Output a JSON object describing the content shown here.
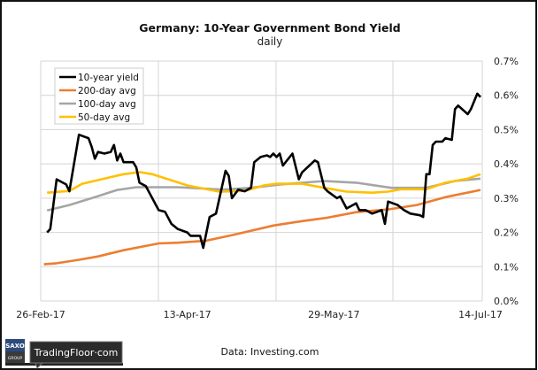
{
  "chart_data": {
    "type": "line",
    "title": "Germany: 10-Year Government Bond Yield",
    "subtitle": "daily",
    "xlabel": "",
    "ylabel": "",
    "x_ticks": [
      "26-Feb-17",
      "13-Apr-17",
      "29-May-17",
      "14-Jul-17"
    ],
    "y_ticks": [
      "0.0%",
      "0.1%",
      "0.2%",
      "0.3%",
      "0.4%",
      "0.5%",
      "0.6%",
      "0.7%"
    ],
    "ylim": [
      0,
      0.7
    ],
    "xlim": [
      "2017-02-26",
      "2017-07-14"
    ],
    "y_axis_side": "right",
    "grid": true,
    "legend_position": "top-left",
    "series": [
      {
        "name": "10-year yield",
        "color": "#000000",
        "points": [
          [
            "2017-02-28",
            0.2
          ],
          [
            "2017-03-01",
            0.21
          ],
          [
            "2017-03-03",
            0.355
          ],
          [
            "2017-03-06",
            0.34
          ],
          [
            "2017-03-07",
            0.32
          ],
          [
            "2017-03-10",
            0.485
          ],
          [
            "2017-03-13",
            0.475
          ],
          [
            "2017-03-14",
            0.45
          ],
          [
            "2017-03-15",
            0.415
          ],
          [
            "2017-03-16",
            0.435
          ],
          [
            "2017-03-18",
            0.43
          ],
          [
            "2017-03-20",
            0.435
          ],
          [
            "2017-03-21",
            0.455
          ],
          [
            "2017-03-22",
            0.41
          ],
          [
            "2017-03-23",
            0.43
          ],
          [
            "2017-03-24",
            0.405
          ],
          [
            "2017-03-27",
            0.405
          ],
          [
            "2017-03-28",
            0.39
          ],
          [
            "2017-03-29",
            0.345
          ],
          [
            "2017-03-31",
            0.335
          ],
          [
            "2017-04-04",
            0.265
          ],
          [
            "2017-04-06",
            0.26
          ],
          [
            "2017-04-08",
            0.225
          ],
          [
            "2017-04-10",
            0.21
          ],
          [
            "2017-04-13",
            0.2
          ],
          [
            "2017-04-14",
            0.19
          ],
          [
            "2017-04-17",
            0.19
          ],
          [
            "2017-04-18",
            0.155
          ],
          [
            "2017-04-20",
            0.245
          ],
          [
            "2017-04-22",
            0.255
          ],
          [
            "2017-04-25",
            0.38
          ],
          [
            "2017-04-26",
            0.365
          ],
          [
            "2017-04-27",
            0.3
          ],
          [
            "2017-04-29",
            0.325
          ],
          [
            "2017-05-01",
            0.32
          ],
          [
            "2017-05-03",
            0.33
          ],
          [
            "2017-05-04",
            0.405
          ],
          [
            "2017-05-06",
            0.42
          ],
          [
            "2017-05-08",
            0.425
          ],
          [
            "2017-05-09",
            0.42
          ],
          [
            "2017-05-10",
            0.43
          ],
          [
            "2017-05-11",
            0.42
          ],
          [
            "2017-05-12",
            0.43
          ],
          [
            "2017-05-13",
            0.395
          ],
          [
            "2017-05-16",
            0.43
          ],
          [
            "2017-05-18",
            0.355
          ],
          [
            "2017-05-19",
            0.375
          ],
          [
            "2017-05-23",
            0.41
          ],
          [
            "2017-05-24",
            0.405
          ],
          [
            "2017-05-26",
            0.33
          ],
          [
            "2017-05-27",
            0.32
          ],
          [
            "2017-05-30",
            0.3
          ],
          [
            "2017-05-31",
            0.305
          ],
          [
            "2017-06-02",
            0.27
          ],
          [
            "2017-06-04",
            0.28
          ],
          [
            "2017-06-05",
            0.285
          ],
          [
            "2017-06-06",
            0.265
          ],
          [
            "2017-06-08",
            0.265
          ],
          [
            "2017-06-10",
            0.255
          ],
          [
            "2017-06-13",
            0.265
          ],
          [
            "2017-06-14",
            0.225
          ],
          [
            "2017-06-15",
            0.29
          ],
          [
            "2017-06-18",
            0.28
          ],
          [
            "2017-06-20",
            0.265
          ],
          [
            "2017-06-22",
            0.255
          ],
          [
            "2017-06-25",
            0.25
          ],
          [
            "2017-06-26",
            0.245
          ],
          [
            "2017-06-27",
            0.37
          ],
          [
            "2017-06-28",
            0.37
          ],
          [
            "2017-06-29",
            0.455
          ],
          [
            "2017-06-30",
            0.465
          ],
          [
            "2017-07-02",
            0.465
          ],
          [
            "2017-07-03",
            0.475
          ],
          [
            "2017-07-05",
            0.47
          ],
          [
            "2017-07-06",
            0.56
          ],
          [
            "2017-07-07",
            0.57
          ],
          [
            "2017-07-10",
            0.545
          ],
          [
            "2017-07-11",
            0.56
          ],
          [
            "2017-07-13",
            0.605
          ],
          [
            "2017-07-14",
            0.595
          ]
        ]
      },
      {
        "name": "200-day avg",
        "color": "#ED7D31",
        "points": [
          [
            "2017-02-27",
            0.107
          ],
          [
            "2017-03-03",
            0.11
          ],
          [
            "2017-03-10",
            0.12
          ],
          [
            "2017-03-16",
            0.13
          ],
          [
            "2017-03-24",
            0.148
          ],
          [
            "2017-04-04",
            0.168
          ],
          [
            "2017-04-10",
            0.17
          ],
          [
            "2017-04-19",
            0.176
          ],
          [
            "2017-04-28",
            0.194
          ],
          [
            "2017-05-10",
            0.22
          ],
          [
            "2017-05-19",
            0.233
          ],
          [
            "2017-05-27",
            0.243
          ],
          [
            "2017-06-05",
            0.259
          ],
          [
            "2017-06-15",
            0.267
          ],
          [
            "2017-06-24",
            0.28
          ],
          [
            "2017-07-03",
            0.303
          ],
          [
            "2017-07-14",
            0.324
          ]
        ]
      },
      {
        "name": "100-day avg",
        "color": "#A5A5A5",
        "points": [
          [
            "2017-02-28",
            0.264
          ],
          [
            "2017-03-07",
            0.28
          ],
          [
            "2017-03-15",
            0.303
          ],
          [
            "2017-03-22",
            0.324
          ],
          [
            "2017-03-28",
            0.332
          ],
          [
            "2017-04-10",
            0.332
          ],
          [
            "2017-04-24",
            0.325
          ],
          [
            "2017-05-03",
            0.33
          ],
          [
            "2017-05-12",
            0.34
          ],
          [
            "2017-05-26",
            0.35
          ],
          [
            "2017-06-05",
            0.345
          ],
          [
            "2017-06-16",
            0.33
          ],
          [
            "2017-06-27",
            0.33
          ],
          [
            "2017-07-06",
            0.35
          ],
          [
            "2017-07-14",
            0.357
          ]
        ]
      },
      {
        "name": "50-day avg",
        "color": "#FFC000",
        "points": [
          [
            "2017-02-28",
            0.316
          ],
          [
            "2017-03-07",
            0.321
          ],
          [
            "2017-03-11",
            0.342
          ],
          [
            "2017-03-17",
            0.355
          ],
          [
            "2017-03-24",
            0.37
          ],
          [
            "2017-03-29",
            0.376
          ],
          [
            "2017-04-02",
            0.37
          ],
          [
            "2017-04-13",
            0.337
          ],
          [
            "2017-04-23",
            0.319
          ],
          [
            "2017-05-01",
            0.321
          ],
          [
            "2017-05-07",
            0.337
          ],
          [
            "2017-05-11",
            0.342
          ],
          [
            "2017-05-19",
            0.342
          ],
          [
            "2017-05-26",
            0.33
          ],
          [
            "2017-06-02",
            0.319
          ],
          [
            "2017-06-10",
            0.316
          ],
          [
            "2017-06-15",
            0.319
          ],
          [
            "2017-06-19",
            0.326
          ],
          [
            "2017-06-27",
            0.326
          ],
          [
            "2017-07-03",
            0.345
          ],
          [
            "2017-07-10",
            0.357
          ],
          [
            "2017-07-14",
            0.37
          ]
        ]
      }
    ]
  },
  "footer": {
    "source": "Data: Investing.com",
    "logo_brand": "SAXO",
    "logo_group": "GROUP",
    "logo_text": "TradingFloor·com"
  }
}
